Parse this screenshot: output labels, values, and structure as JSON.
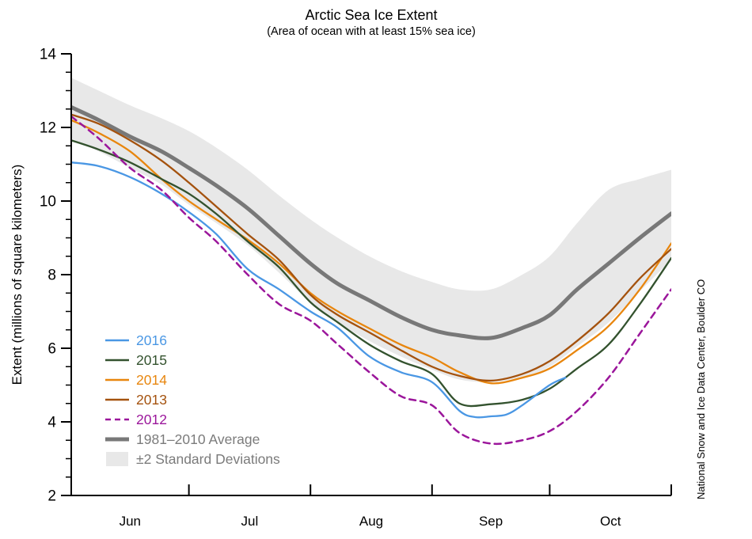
{
  "title": "Arctic Sea Ice Extent",
  "subtitle": "(Area of ocean with at least 15% sea ice)",
  "credit": "National Snow and Ice Data Center, Boulder CO",
  "chart_data": {
    "type": "line",
    "title": "Arctic Sea Ice Extent",
    "subtitle": "(Area of ocean with at least 15% sea ice)",
    "ylabel": "Extent (millions of square kilometers)",
    "ylim": [
      2,
      14
    ],
    "y_major_ticks": [
      2,
      4,
      6,
      8,
      10,
      12,
      14
    ],
    "y_minor_step": 0.5,
    "x_months": [
      "Jun",
      "Jul",
      "Aug",
      "Sep",
      "Oct"
    ],
    "x_month_label_days": [
      15,
      45.5,
      76.5,
      107,
      137.5
    ],
    "x_month_tick_days": [
      30,
      61,
      92,
      122,
      153
    ],
    "x_total_days": 153,
    "grid": false,
    "legend_position": "lower-left",
    "axis_color": "#000000",
    "neutral_text_color": "#7b7b7b",
    "x_days": [
      0,
      7,
      15,
      23,
      30,
      37,
      45,
      53,
      61,
      68,
      76,
      84,
      92,
      99,
      107,
      115,
      122,
      129,
      137,
      145,
      153
    ],
    "band": {
      "label": "±2 Standard Deviations",
      "color": "#e8e8e8",
      "top": [
        13.35,
        13.0,
        12.6,
        12.25,
        11.9,
        11.45,
        10.85,
        10.15,
        9.5,
        9.0,
        8.5,
        8.1,
        7.8,
        7.6,
        7.6,
        8.0,
        8.5,
        9.4,
        10.3,
        10.6,
        10.85
      ],
      "bottom": [
        11.7,
        11.35,
        10.9,
        10.45,
        9.9,
        9.4,
        8.8,
        8.05,
        7.25,
        6.7,
        6.2,
        5.78,
        5.42,
        5.15,
        5.08,
        5.22,
        5.5,
        6.05,
        6.7,
        7.55,
        8.4
      ]
    },
    "average": {
      "label": "1981–2010 Average",
      "color": "#787878",
      "width": 5,
      "values": [
        12.55,
        12.2,
        11.75,
        11.35,
        10.9,
        10.42,
        9.8,
        9.05,
        8.3,
        7.75,
        7.3,
        6.85,
        6.5,
        6.35,
        6.28,
        6.55,
        6.9,
        7.6,
        8.3,
        9.0,
        9.66
      ]
    },
    "series": [
      {
        "name": "2016",
        "color": "#4a97e4",
        "dashed": false,
        "x_days": [
          0,
          7,
          15,
          23,
          30,
          37,
          45,
          53,
          61,
          68,
          76,
          84,
          92,
          99,
          103,
          107,
          111,
          115,
          122,
          126
        ],
        "values": [
          11.05,
          10.95,
          10.65,
          10.2,
          9.7,
          9.1,
          8.15,
          7.6,
          7.0,
          6.55,
          5.78,
          5.35,
          5.08,
          4.3,
          4.13,
          4.15,
          4.2,
          4.45,
          5.0,
          5.2
        ]
      },
      {
        "name": "2015",
        "color": "#33522e",
        "dashed": false,
        "x_days": [
          0,
          7,
          15,
          23,
          30,
          37,
          45,
          53,
          61,
          68,
          76,
          84,
          92,
          99,
          107,
          115,
          122,
          129,
          137,
          145,
          153
        ],
        "values": [
          11.65,
          11.4,
          11.05,
          10.6,
          10.2,
          9.65,
          8.9,
          8.2,
          7.25,
          6.7,
          6.1,
          5.65,
          5.3,
          4.5,
          4.48,
          4.6,
          4.9,
          5.45,
          6.1,
          7.2,
          8.45
        ]
      },
      {
        "name": "2014",
        "color": "#e8860e",
        "dashed": false,
        "x_days": [
          0,
          7,
          15,
          23,
          30,
          37,
          45,
          53,
          61,
          68,
          76,
          84,
          92,
          99,
          107,
          115,
          122,
          129,
          137,
          145,
          153
        ],
        "values": [
          12.2,
          11.85,
          11.35,
          10.6,
          10.0,
          9.5,
          8.95,
          8.3,
          7.5,
          7.0,
          6.54,
          6.1,
          5.75,
          5.35,
          5.05,
          5.2,
          5.45,
          5.95,
          6.6,
          7.6,
          8.85
        ]
      },
      {
        "name": "2013",
        "color": "#a4520e",
        "dashed": false,
        "x_days": [
          0,
          7,
          15,
          23,
          30,
          37,
          45,
          53,
          61,
          68,
          76,
          84,
          92,
          99,
          107,
          115,
          122,
          129,
          137,
          145,
          153
        ],
        "values": [
          12.35,
          12.1,
          11.65,
          11.1,
          10.5,
          9.85,
          9.1,
          8.4,
          7.45,
          6.9,
          6.43,
          5.95,
          5.5,
          5.25,
          5.12,
          5.3,
          5.65,
          6.2,
          6.95,
          7.9,
          8.7
        ]
      },
      {
        "name": "2012",
        "color": "#9b169b",
        "dashed": true,
        "x_days": [
          0,
          7,
          15,
          23,
          30,
          37,
          45,
          53,
          61,
          68,
          76,
          84,
          92,
          99,
          107,
          115,
          122,
          129,
          137,
          145,
          153
        ],
        "values": [
          12.3,
          11.7,
          10.9,
          10.3,
          9.55,
          8.9,
          8.0,
          7.2,
          6.75,
          6.1,
          5.35,
          4.7,
          4.45,
          3.7,
          3.41,
          3.5,
          3.75,
          4.3,
          5.2,
          6.4,
          7.6
        ]
      }
    ]
  }
}
